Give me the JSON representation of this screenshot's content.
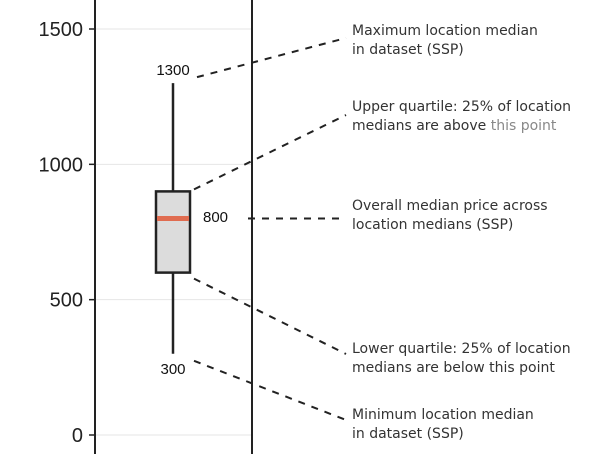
{
  "chart_data": {
    "type": "box",
    "title": "",
    "xlabel": "",
    "ylabel": "",
    "ylim": [
      -10,
      1550
    ],
    "yticks": [
      0,
      500,
      1000,
      1500
    ],
    "grid": true,
    "box": {
      "min": 300,
      "q1": 600,
      "median": 800,
      "q3": 900,
      "max": 1300
    },
    "value_labels": {
      "max": "1300",
      "median": "800",
      "min": "300"
    },
    "annotations": {
      "max": [
        "Maximum location median",
        "in dataset (SSP)"
      ],
      "q3": {
        "line1": "Upper quartile: 25% of location",
        "line2_main": "medians are above ",
        "line2_faint": "this point"
      },
      "median": [
        "Overall median price across",
        "location medians (SSP)"
      ],
      "q1": [
        "Lower quartile: 25% of location",
        "medians are below this point"
      ],
      "min": [
        "Minimum location median",
        "in dataset (SSP)"
      ]
    },
    "colors": {
      "median_line": "#e06c50",
      "box_fill": "#dcdcdc",
      "stroke": "#222222",
      "grid": "#e6e6e6",
      "annotation_text": "#333333"
    }
  }
}
